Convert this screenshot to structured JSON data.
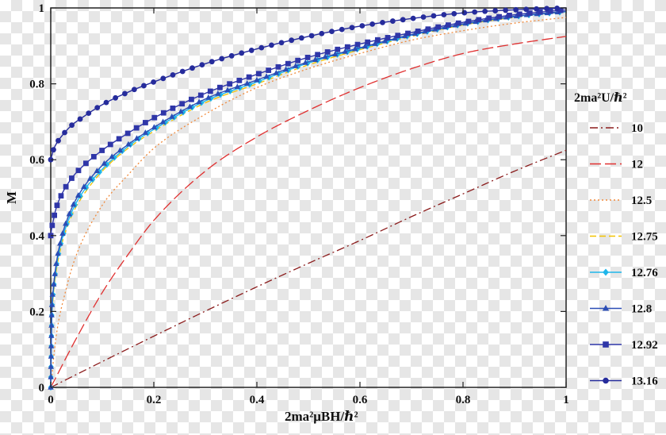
{
  "chart_data": {
    "type": "line",
    "title": "",
    "xlabel": "2ma²μBH/ℏ²",
    "ylabel": "M",
    "xlim": [
      0,
      1
    ],
    "ylim": [
      0,
      1
    ],
    "xticks": [
      "0",
      "0.2",
      "0.4",
      "0.6",
      "0.8",
      "1"
    ],
    "yticks": [
      "0",
      "0.2",
      "0.4",
      "0.6",
      "0.8",
      "1"
    ],
    "grid": false,
    "legend_position": "right",
    "legend_title": "2ma²U/ℏ²",
    "series": [
      {
        "name": "10",
        "color": "#8b1c1c",
        "dash": "dashdot",
        "marker": "none",
        "x": [
          0,
          0.1,
          0.2,
          0.3,
          0.4,
          0.5,
          0.6,
          0.7,
          0.8,
          0.9,
          1.0
        ],
        "y": [
          0,
          0.068,
          0.135,
          0.201,
          0.265,
          0.327,
          0.387,
          0.45,
          0.51,
          0.57,
          0.625
        ]
      },
      {
        "name": "12",
        "color": "#e03030",
        "dash": "longdash",
        "marker": "none",
        "x": [
          0,
          0.05,
          0.1,
          0.15,
          0.2,
          0.3,
          0.4,
          0.5,
          0.6,
          0.7,
          0.8,
          0.9,
          1.0
        ],
        "y": [
          0,
          0.13,
          0.25,
          0.35,
          0.44,
          0.57,
          0.66,
          0.73,
          0.79,
          0.84,
          0.88,
          0.905,
          0.925
        ]
      },
      {
        "name": "12.5",
        "color": "#f08a3c",
        "dash": "dot",
        "marker": "none",
        "x": [
          0,
          0.01,
          0.03,
          0.05,
          0.1,
          0.15,
          0.2,
          0.3,
          0.4,
          0.5,
          0.6,
          0.7,
          0.8,
          0.9,
          1.0
        ],
        "y": [
          0,
          0.13,
          0.26,
          0.35,
          0.48,
          0.56,
          0.63,
          0.72,
          0.79,
          0.84,
          0.88,
          0.915,
          0.94,
          0.96,
          0.975
        ]
      },
      {
        "name": "12.75",
        "color": "#f2c200",
        "dash": "dash",
        "marker": "none",
        "x": [
          0,
          0.002,
          0.005,
          0.01,
          0.02,
          0.04,
          0.06,
          0.1,
          0.15,
          0.2,
          0.3,
          0.4,
          0.5,
          0.6,
          0.7,
          0.8,
          0.9,
          1.0
        ],
        "y": [
          0,
          0.17,
          0.24,
          0.3,
          0.37,
          0.45,
          0.5,
          0.57,
          0.63,
          0.675,
          0.75,
          0.8,
          0.85,
          0.89,
          0.925,
          0.955,
          0.975,
          0.99
        ]
      },
      {
        "name": "12.76",
        "color": "#1fb6ea",
        "dash": "solid",
        "marker": "diamond",
        "x": [
          0,
          0.002,
          0.005,
          0.01,
          0.02,
          0.04,
          0.06,
          0.1,
          0.15,
          0.2,
          0.3,
          0.4,
          0.5,
          0.6,
          0.7,
          0.8,
          0.9,
          1.0
        ],
        "y": [
          0,
          0.18,
          0.25,
          0.31,
          0.38,
          0.46,
          0.51,
          0.575,
          0.635,
          0.68,
          0.755,
          0.805,
          0.855,
          0.893,
          0.928,
          0.957,
          0.977,
          0.99
        ]
      },
      {
        "name": "12.8",
        "color": "#2b4db5",
        "dash": "solid",
        "marker": "triangle",
        "x": [
          0,
          0.002,
          0.005,
          0.01,
          0.02,
          0.04,
          0.06,
          0.1,
          0.15,
          0.2,
          0.3,
          0.4,
          0.5,
          0.6,
          0.7,
          0.8,
          0.9,
          1.0
        ],
        "y": [
          0,
          0.2,
          0.26,
          0.32,
          0.39,
          0.47,
          0.52,
          0.585,
          0.64,
          0.685,
          0.76,
          0.81,
          0.858,
          0.895,
          0.93,
          0.958,
          0.978,
          0.991
        ]
      },
      {
        "name": "12.92",
        "color": "#2f36a8",
        "dash": "solid",
        "marker": "square",
        "x": [
          0,
          0.002,
          0.005,
          0.01,
          0.02,
          0.04,
          0.06,
          0.1,
          0.15,
          0.2,
          0.3,
          0.4,
          0.5,
          0.6,
          0.7,
          0.8,
          0.9,
          1.0
        ],
        "y": [
          0.4,
          0.42,
          0.44,
          0.47,
          0.505,
          0.55,
          0.58,
          0.625,
          0.67,
          0.71,
          0.775,
          0.825,
          0.87,
          0.905,
          0.935,
          0.962,
          0.982,
          0.995
        ]
      },
      {
        "name": "13.16",
        "color": "#262c9c",
        "dash": "solid",
        "marker": "circle",
        "x": [
          0,
          0.005,
          0.01,
          0.02,
          0.04,
          0.06,
          0.1,
          0.15,
          0.2,
          0.3,
          0.4,
          0.5,
          0.6,
          0.7,
          0.8,
          0.9,
          1.0
        ],
        "y": [
          0.6,
          0.625,
          0.64,
          0.66,
          0.69,
          0.71,
          0.745,
          0.778,
          0.805,
          0.853,
          0.892,
          0.925,
          0.952,
          0.972,
          0.987,
          0.995,
          1.0
        ]
      }
    ]
  }
}
